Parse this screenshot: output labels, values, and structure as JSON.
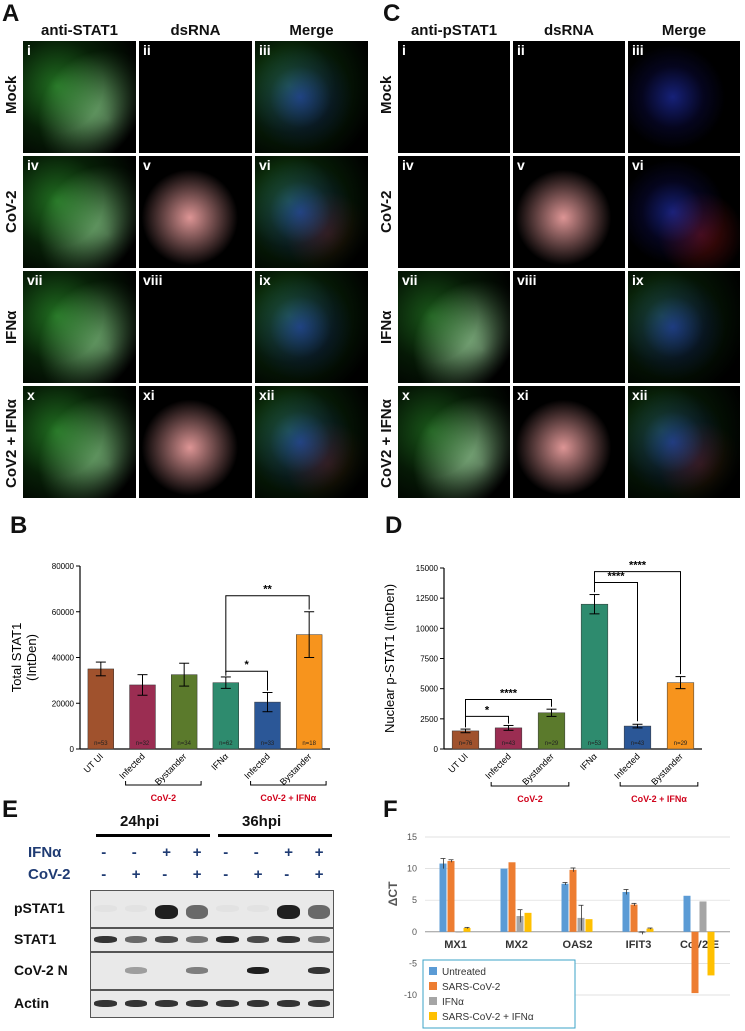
{
  "panelA": {
    "letter": "A",
    "columns": [
      "anti-STAT1",
      "dsRNA",
      "Merge"
    ],
    "rows": [
      "Mock",
      "CoV-2",
      "IFNα",
      "CoV2 + IFNα"
    ],
    "cell_labels": [
      "i",
      "ii",
      "iii",
      "iv",
      "v",
      "vi",
      "vii",
      "viii",
      "ix",
      "x",
      "xi",
      "xii"
    ]
  },
  "panelC": {
    "letter": "C",
    "columns": [
      "anti-pSTAT1",
      "dsRNA",
      "Merge"
    ],
    "rows": [
      "Mock",
      "CoV-2",
      "IFNα",
      "CoV2 + IFNα"
    ],
    "cell_labels": [
      "i",
      "ii",
      "iii",
      "iv",
      "v",
      "vi",
      "vii",
      "viii",
      "ix",
      "x",
      "xi",
      "xii"
    ]
  },
  "panelB": {
    "letter": "B",
    "group_labels": [
      "CoV-2",
      "CoV-2 + IFNα"
    ],
    "sig": [
      "*",
      "**"
    ]
  },
  "panelD": {
    "letter": "D",
    "group_labels": [
      "CoV-2",
      "CoV-2 + IFNα"
    ],
    "sig": [
      "*",
      "****",
      "****",
      "****"
    ]
  },
  "panelE": {
    "letter": "E",
    "timepoints": [
      "24hpi",
      "36hpi"
    ],
    "treat_rows": [
      {
        "label": "IFNα",
        "signs": [
          "-",
          "-",
          "+",
          "+",
          "-",
          "-",
          "+",
          "+"
        ]
      },
      {
        "label": "CoV-2",
        "signs": [
          "-",
          "+",
          "-",
          "+",
          "-",
          "+",
          "-",
          "+"
        ]
      }
    ],
    "blots": [
      "pSTAT1",
      "STAT1",
      "CoV-2 N",
      "Actin"
    ]
  },
  "panelF": {
    "letter": "F"
  },
  "colors": {
    "red_label": "#d0021b",
    "dark_blue_label": "#1f3b73"
  },
  "chart_data": [
    {
      "id": "B",
      "type": "bar",
      "ylabel": "Total STAT1 (IntDen)",
      "ylim": [
        0,
        80000
      ],
      "yticks": [
        "0",
        "20000",
        "40000",
        "60000",
        "80000"
      ],
      "categories": [
        "UT UI",
        "Infected",
        "Bystander",
        "IFNα",
        "Infected",
        "Bystander"
      ],
      "values": [
        35000,
        28000,
        32500,
        29000,
        20500,
        50000
      ],
      "errors": [
        3000,
        4500,
        5000,
        2500,
        4200,
        10000
      ],
      "n_labels": [
        "n=53",
        "n=32",
        "n=34",
        "n=62",
        "n=33",
        "n=18"
      ],
      "colors": [
        "#a0522d",
        "#9b2d52",
        "#5b7a2c",
        "#2e8b6e",
        "#2b5797",
        "#f7941d"
      ],
      "group_labels": [
        "CoV-2",
        "CoV-2 + IFNα"
      ]
    },
    {
      "id": "D",
      "type": "bar",
      "ylabel": "Nuclear p-STAT1 (IntDen)",
      "ylim": [
        0,
        15000
      ],
      "yticks": [
        "0",
        "2500",
        "5000",
        "7500",
        "10000",
        "12500",
        "15000"
      ],
      "categories": [
        "UT UI",
        "Infected",
        "Bystander",
        "IFNα",
        "Infected",
        "Bystander"
      ],
      "values": [
        1500,
        1750,
        3000,
        12000,
        1900,
        5500
      ],
      "errors": [
        150,
        200,
        300,
        800,
        150,
        500
      ],
      "n_labels": [
        "n=76",
        "n=43",
        "n=29",
        "n=53",
        "n=43",
        "n=29"
      ],
      "colors": [
        "#a0522d",
        "#9b2d52",
        "#5b7a2c",
        "#2e8b6e",
        "#2b5797",
        "#f7941d"
      ],
      "group_labels": [
        "CoV-2",
        "CoV-2 + IFNα"
      ]
    },
    {
      "id": "F",
      "type": "bar",
      "ylabel": "ΔCT",
      "ylim": [
        -10,
        15
      ],
      "yticks": [
        "-10",
        "-5",
        "0",
        "5",
        "10",
        "15"
      ],
      "categories": [
        "MX1",
        "MX2",
        "OAS2",
        "IFIT3",
        "CoV2-E"
      ],
      "series": [
        {
          "name": "Untreated",
          "color": "#5b9bd5",
          "values": [
            10.8,
            10.0,
            7.6,
            6.3,
            5.7
          ],
          "errors": [
            0.8,
            0,
            0.2,
            0.4,
            0
          ]
        },
        {
          "name": "SARS-CoV-2",
          "color": "#ed7d31",
          "values": [
            11.2,
            11.0,
            9.8,
            4.3,
            -9.7
          ],
          "errors": [
            0.2,
            0,
            0.3,
            0.2,
            0
          ]
        },
        {
          "name": "IFNα",
          "color": "#a5a5a5",
          "values": [
            -0.1,
            2.5,
            2.2,
            -0.2,
            4.8
          ],
          "errors": [
            0,
            1.0,
            2.0,
            0.2,
            0
          ]
        },
        {
          "name": "SARS-CoV-2 + IFNα",
          "color": "#ffc000",
          "values": [
            0.6,
            3.0,
            2.0,
            0.5,
            -6.9
          ],
          "errors": [
            0.1,
            0,
            0,
            0.1,
            0
          ]
        }
      ]
    }
  ]
}
